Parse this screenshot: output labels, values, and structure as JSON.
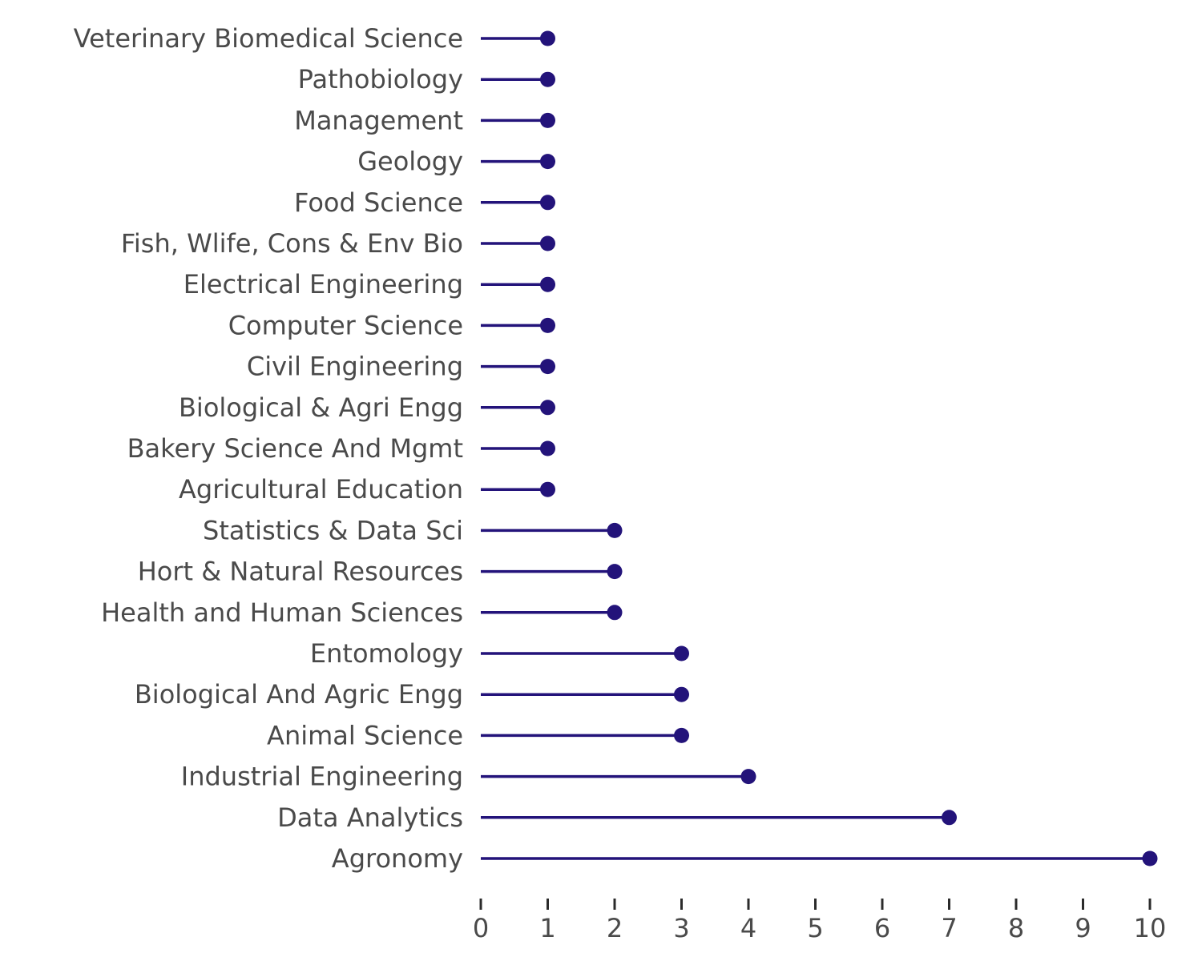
{
  "chart_data": {
    "type": "lollipop",
    "orientation": "horizontal",
    "title": "",
    "xlabel": "",
    "ylabel": "",
    "xlim": [
      0,
      10
    ],
    "xticks": [
      0,
      1,
      2,
      3,
      4,
      5,
      6,
      7,
      8,
      9,
      10
    ],
    "grid": false,
    "legend": "none",
    "color": "#23137a",
    "label_color": "#4a4a4a",
    "categories": [
      "Veterinary Biomedical Science",
      "Pathobiology",
      "Management",
      "Geology",
      "Food Science",
      "Fish, Wlife, Cons & Env Bio",
      "Electrical Engineering",
      "Computer Science",
      "Civil Engineering",
      "Biological & Agri Engg",
      "Bakery Science And Mgmt",
      "Agricultural Education",
      "Statistics & Data Sci",
      "Hort & Natural Resources",
      "Health and Human Sciences",
      "Entomology",
      "Biological And Agric Engg",
      "Animal Science",
      "Industrial Engineering",
      "Data Analytics",
      "Agronomy"
    ],
    "values": [
      1,
      1,
      1,
      1,
      1,
      1,
      1,
      1,
      1,
      1,
      1,
      1,
      2,
      2,
      2,
      3,
      3,
      3,
      4,
      7,
      10
    ]
  }
}
